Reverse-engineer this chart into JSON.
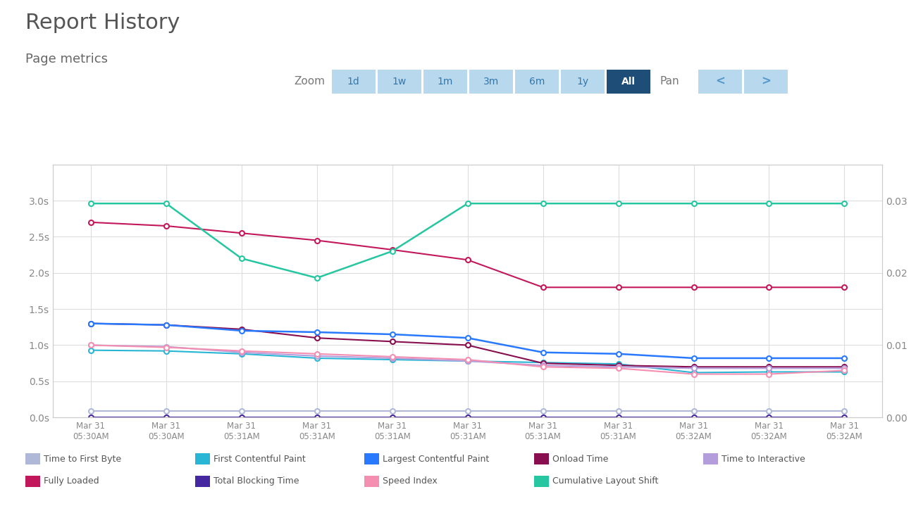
{
  "title": "Report History",
  "subtitle": "Page metrics",
  "x_labels": [
    "Mar 31\n05:30AM",
    "Mar 31\n05:30AM",
    "Mar 31\n05:31AM",
    "Mar 31\n05:31AM",
    "Mar 31\n05:31AM",
    "Mar 31\n05:31AM",
    "Mar 31\n05:31AM",
    "Mar 31\n05:31AM",
    "Mar 31\n05:32AM",
    "Mar 31\n05:32AM",
    "Mar 31\n05:32AM"
  ],
  "x_indices": [
    0,
    1,
    2,
    3,
    4,
    5,
    6,
    7,
    8,
    9,
    10
  ],
  "series": [
    {
      "key": "time_to_first_byte",
      "label": "Time to First Byte",
      "color": "#b0b8d8",
      "data": [
        0.09,
        0.09,
        0.09,
        0.09,
        0.09,
        0.09,
        0.09,
        0.09,
        0.09,
        0.09,
        0.09
      ],
      "linewidth": 1.5,
      "zorder": 2,
      "secondary": false
    },
    {
      "key": "first_contentful_paint",
      "label": "First Contentful Paint",
      "color": "#29b6d4",
      "data": [
        0.93,
        0.92,
        0.88,
        0.82,
        0.8,
        0.78,
        0.76,
        0.74,
        0.62,
        0.63,
        0.63
      ],
      "linewidth": 1.5,
      "zorder": 3,
      "secondary": false
    },
    {
      "key": "largest_contentful_paint",
      "label": "Largest Contentful Paint",
      "color": "#2979ff",
      "data": [
        1.3,
        1.28,
        1.2,
        1.18,
        1.15,
        1.1,
        0.9,
        0.88,
        0.82,
        0.82,
        0.82
      ],
      "linewidth": 1.8,
      "zorder": 4,
      "secondary": false
    },
    {
      "key": "onload_time",
      "label": "Onload Time",
      "color": "#880e4f",
      "data": [
        1.3,
        1.28,
        1.22,
        1.1,
        1.05,
        1.0,
        0.75,
        0.72,
        0.7,
        0.7,
        0.7
      ],
      "linewidth": 1.5,
      "zorder": 3,
      "secondary": false
    },
    {
      "key": "time_to_interactive",
      "label": "Time to Interactive",
      "color": "#b39ddb",
      "data": [
        1.0,
        0.98,
        0.9,
        0.85,
        0.82,
        0.78,
        0.72,
        0.7,
        0.68,
        0.68,
        0.68
      ],
      "linewidth": 1.5,
      "zorder": 3,
      "secondary": false
    },
    {
      "key": "speed_index",
      "label": "Speed Index",
      "color": "#f48fb1",
      "data": [
        1.0,
        0.97,
        0.92,
        0.88,
        0.84,
        0.8,
        0.7,
        0.68,
        0.6,
        0.6,
        0.65
      ],
      "linewidth": 1.5,
      "zorder": 3,
      "secondary": false
    },
    {
      "key": "fully_loaded",
      "label": "Fully Loaded",
      "color": "#c2185b",
      "data": [
        2.7,
        2.65,
        2.55,
        2.45,
        2.32,
        2.18,
        1.8,
        1.8,
        1.8,
        1.8,
        1.8
      ],
      "linewidth": 1.5,
      "zorder": 5,
      "secondary": false
    },
    {
      "key": "total_blocking_time",
      "label": "Total Blocking Time",
      "color": "#4527a0",
      "data": [
        0.005,
        0.005,
        0.005,
        0.005,
        0.005,
        0.005,
        0.005,
        0.005,
        0.005,
        0.005,
        0.005
      ],
      "linewidth": 1.5,
      "zorder": 2,
      "secondary": false
    },
    {
      "key": "cumulative_layout_shift",
      "label": "Cumulative Layout Shift",
      "color": "#26c6a0",
      "data": [
        0.0296,
        0.0296,
        0.022,
        0.0193,
        0.023,
        0.0296,
        0.0296,
        0.0296,
        0.0296,
        0.0296,
        0.0296
      ],
      "linewidth": 1.8,
      "zorder": 5,
      "secondary": true
    }
  ],
  "ylim_left": [
    0,
    3.5
  ],
  "ylim_right": [
    0,
    0.035
  ],
  "yticks_left": [
    0.0,
    0.5,
    1.0,
    1.5,
    2.0,
    2.5,
    3.0
  ],
  "ytick_labels_left": [
    "0.0s",
    "0.5s",
    "1.0s",
    "1.5s",
    "2.0s",
    "2.5s",
    "3.0s"
  ],
  "yticks_right": [
    0.0,
    0.01,
    0.02,
    0.03
  ],
  "ytick_labels_right": [
    "0.00",
    "0.01",
    "0.02",
    "0.03"
  ],
  "bg_color": "#ffffff",
  "grid_color": "#dddddd",
  "title_color": "#555555",
  "subtitle_color": "#666666",
  "axis_color": "#888888",
  "zoom_buttons": [
    "1d",
    "1w",
    "1m",
    "3m",
    "6m",
    "1y",
    "All"
  ],
  "active_zoom": "All",
  "btn_inactive_color": "#b8d8ee",
  "btn_active_color": "#1e4d78",
  "btn_active_text": "#ffffff",
  "btn_inactive_text": "#3377aa",
  "pan_arrow_color": "#5599cc",
  "legend_items_row1": [
    [
      "Time to First Byte",
      "#b0b8d8"
    ],
    [
      "First Contentful Paint",
      "#29b6d4"
    ],
    [
      "Largest Contentful Paint",
      "#2979ff"
    ],
    [
      "Onload Time",
      "#880e4f"
    ],
    [
      "Time to Interactive",
      "#b39ddb"
    ]
  ],
  "legend_items_row2": [
    [
      "Fully Loaded",
      "#c2185b"
    ],
    [
      "Total Blocking Time",
      "#4527a0"
    ],
    [
      "Speed Index",
      "#f48fb1"
    ],
    [
      "Cumulative Layout Shift",
      "#26c6a0"
    ]
  ]
}
